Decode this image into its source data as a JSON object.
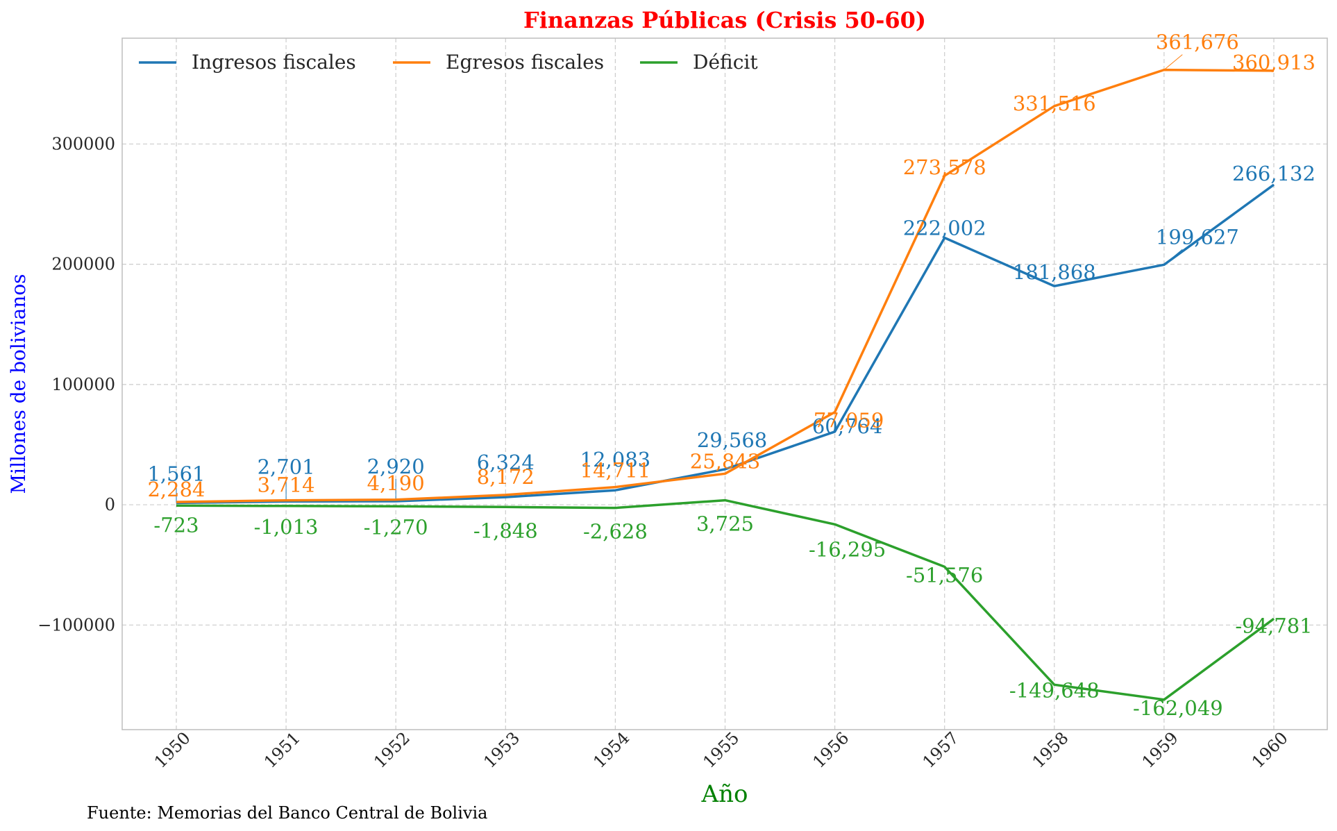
{
  "chart_data": {
    "type": "line",
    "title": "Finanzas Públicas (Crisis 50-60)",
    "xlabel": "Año",
    "ylabel": "Millones de bolivianos",
    "source_note": "Fuente: Memorias del Banco Central de Bolivia",
    "x": [
      "1950",
      "1951",
      "1952",
      "1953",
      "1954",
      "1955",
      "1956",
      "1957",
      "1958",
      "1959",
      "1960"
    ],
    "ylim": [
      -187000,
      388000
    ],
    "yticks": [
      -100000,
      0,
      100000,
      200000,
      300000
    ],
    "ytick_labels": [
      "−100000",
      "0",
      "100000",
      "200000",
      "300000"
    ],
    "grid": true,
    "legend_position": "top-left",
    "colors": {
      "title": "#ff0000",
      "xlabel": "#008000",
      "ylabel": "#0000ff"
    },
    "series": [
      {
        "name": "Ingresos fiscales",
        "color": "#1f77b4",
        "values": [
          1561,
          2701,
          2920,
          6324,
          12083,
          29568,
          60764,
          222002,
          181868,
          199627,
          266132
        ],
        "labels": [
          "1,561",
          "2,701",
          "2,920",
          "6,324",
          "12,083",
          "29,568",
          "60,764",
          "222,002",
          "181,868",
          "199,627",
          "266,132"
        ]
      },
      {
        "name": "Egresos fiscales",
        "color": "#ff7f0e",
        "values": [
          2284,
          3714,
          4190,
          8172,
          14711,
          25843,
          77059,
          273578,
          331516,
          361676,
          360913
        ],
        "labels": [
          "2,284",
          "3,714",
          "4,190",
          "8,172",
          "14,711",
          "25,843",
          "77,059",
          "273,578",
          "331,516",
          "361,676",
          "360,913"
        ]
      },
      {
        "name": "Déficit",
        "color": "#2ca02c",
        "values": [
          -723,
          -1013,
          -1270,
          -1848,
          -2628,
          3725,
          -16295,
          -51576,
          -149648,
          -162049,
          -94781
        ],
        "labels": [
          "-723",
          "-1,013",
          "-1,270",
          "-1,848",
          "-2,628",
          "3,725",
          "-16,295",
          "-51,576",
          "-149,648",
          "-162,049",
          "-94,781"
        ]
      }
    ]
  }
}
